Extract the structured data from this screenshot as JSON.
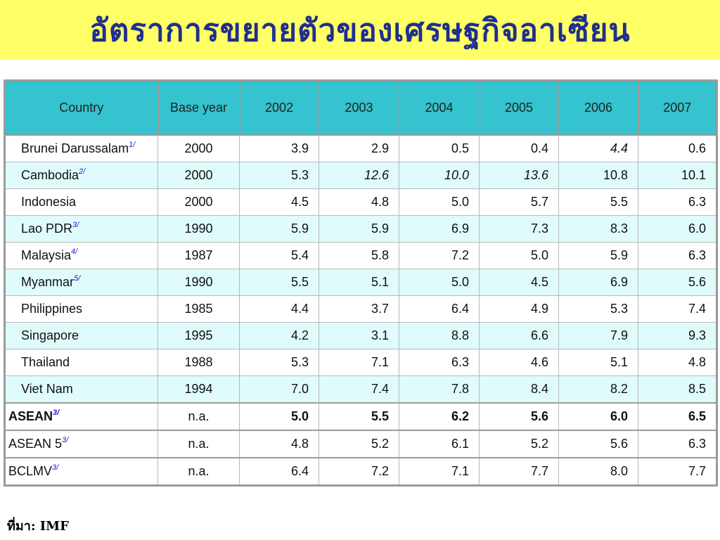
{
  "title": "อัตราการขยายตัวของเศรษฐกิจอาเซียน",
  "table": {
    "headers": [
      "Country",
      "Base year",
      "2002",
      "2003",
      "2004",
      "2005",
      "2006",
      "2007"
    ],
    "rows": [
      {
        "country": "Brunei Darussalam",
        "note": "1/",
        "base": "2000",
        "v": [
          "3.9",
          "2.9",
          "0.5",
          "0.4",
          "4.4",
          "0.6"
        ],
        "italic": [
          false,
          false,
          false,
          false,
          true,
          false
        ]
      },
      {
        "country": "Cambodia",
        "note": "2/",
        "base": "2000",
        "v": [
          "5.3",
          "12.6",
          "10.0",
          "13.6",
          "10.8",
          "10.1"
        ],
        "italic": [
          false,
          true,
          true,
          true,
          false,
          false
        ]
      },
      {
        "country": "Indonesia",
        "note": "",
        "base": "2000",
        "v": [
          "4.5",
          "4.8",
          "5.0",
          "5.7",
          "5.5",
          "6.3"
        ],
        "italic": [
          false,
          false,
          false,
          false,
          false,
          false
        ]
      },
      {
        "country": "Lao PDR",
        "note": "3/",
        "base": "1990",
        "v": [
          "5.9",
          "5.9",
          "6.9",
          "7.3",
          "8.3",
          "6.0"
        ],
        "italic": [
          false,
          false,
          false,
          false,
          false,
          false
        ]
      },
      {
        "country": "Malaysia",
        "note": "4/",
        "base": "1987",
        "v": [
          "5.4",
          "5.8",
          "7.2",
          "5.0",
          "5.9",
          "6.3"
        ],
        "italic": [
          false,
          false,
          false,
          false,
          false,
          false
        ]
      },
      {
        "country": "Myanmar",
        "note": "5/",
        "base": "1990",
        "v": [
          "5.5",
          "5.1",
          "5.0",
          "4.5",
          "6.9",
          "5.6"
        ],
        "italic": [
          false,
          false,
          false,
          false,
          false,
          false
        ]
      },
      {
        "country": "Philippines",
        "note": "",
        "base": "1985",
        "v": [
          "4.4",
          "3.7",
          "6.4",
          "4.9",
          "5.3",
          "7.4"
        ],
        "italic": [
          false,
          false,
          false,
          false,
          false,
          false
        ]
      },
      {
        "country": "Singapore",
        "note": "",
        "base": "1995",
        "v": [
          "4.2",
          "3.1",
          "8.8",
          "6.6",
          "7.9",
          "9.3"
        ],
        "italic": [
          false,
          false,
          false,
          false,
          false,
          false
        ]
      },
      {
        "country": "Thailand",
        "note": "",
        "base": "1988",
        "v": [
          "5.3",
          "7.1",
          "6.3",
          "4.6",
          "5.1",
          "4.8"
        ],
        "italic": [
          false,
          false,
          false,
          false,
          false,
          false
        ]
      },
      {
        "country": "Viet Nam",
        "note": "",
        "base": "1994",
        "v": [
          "7.0",
          "7.4",
          "7.8",
          "8.4",
          "8.2",
          "8.5"
        ],
        "italic": [
          false,
          false,
          false,
          false,
          false,
          false
        ]
      }
    ],
    "aggregates": [
      {
        "country": "ASEAN",
        "note": "3/",
        "base": "n.a.",
        "v": [
          "5.0",
          "5.5",
          "6.2",
          "5.6",
          "6.0",
          "6.5"
        ],
        "bold": true
      },
      {
        "country": "ASEAN 5",
        "note": "3/",
        "base": "n.a.",
        "v": [
          "4.8",
          "5.2",
          "6.1",
          "5.2",
          "5.6",
          "6.3"
        ],
        "bold": false
      },
      {
        "country": "BCLMV",
        "note": "3/",
        "base": "n.a.",
        "v": [
          "6.4",
          "7.2",
          "7.1",
          "7.7",
          "8.0",
          "7.7"
        ],
        "bold": false
      }
    ]
  },
  "source": "ที่มา: IMF"
}
